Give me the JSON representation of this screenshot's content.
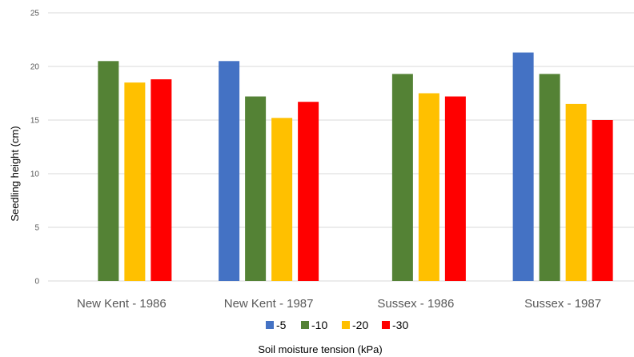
{
  "chart_data": {
    "type": "bar",
    "title": "",
    "xlabel": "Soil moisture tension (kPa)",
    "ylabel": "Seedling height (cm)",
    "ylim": [
      0,
      25
    ],
    "yticks": [
      0,
      5,
      10,
      15,
      20,
      25
    ],
    "grid": true,
    "legend_position": "bottom",
    "categories": [
      "New Kent - 1986",
      "New Kent - 1987",
      "Sussex - 1986",
      "Sussex - 1987"
    ],
    "series": [
      {
        "name": "-5",
        "color": "#4472c4",
        "values": [
          null,
          20.5,
          null,
          21.3
        ]
      },
      {
        "name": "-10",
        "color": "#548235",
        "values": [
          20.5,
          17.2,
          19.3,
          19.3
        ]
      },
      {
        "name": "-20",
        "color": "#ffc000",
        "values": [
          18.5,
          15.2,
          17.5,
          16.5
        ]
      },
      {
        "name": "-30",
        "color": "#ff0000",
        "values": [
          18.8,
          16.7,
          17.2,
          15.0
        ]
      }
    ]
  }
}
